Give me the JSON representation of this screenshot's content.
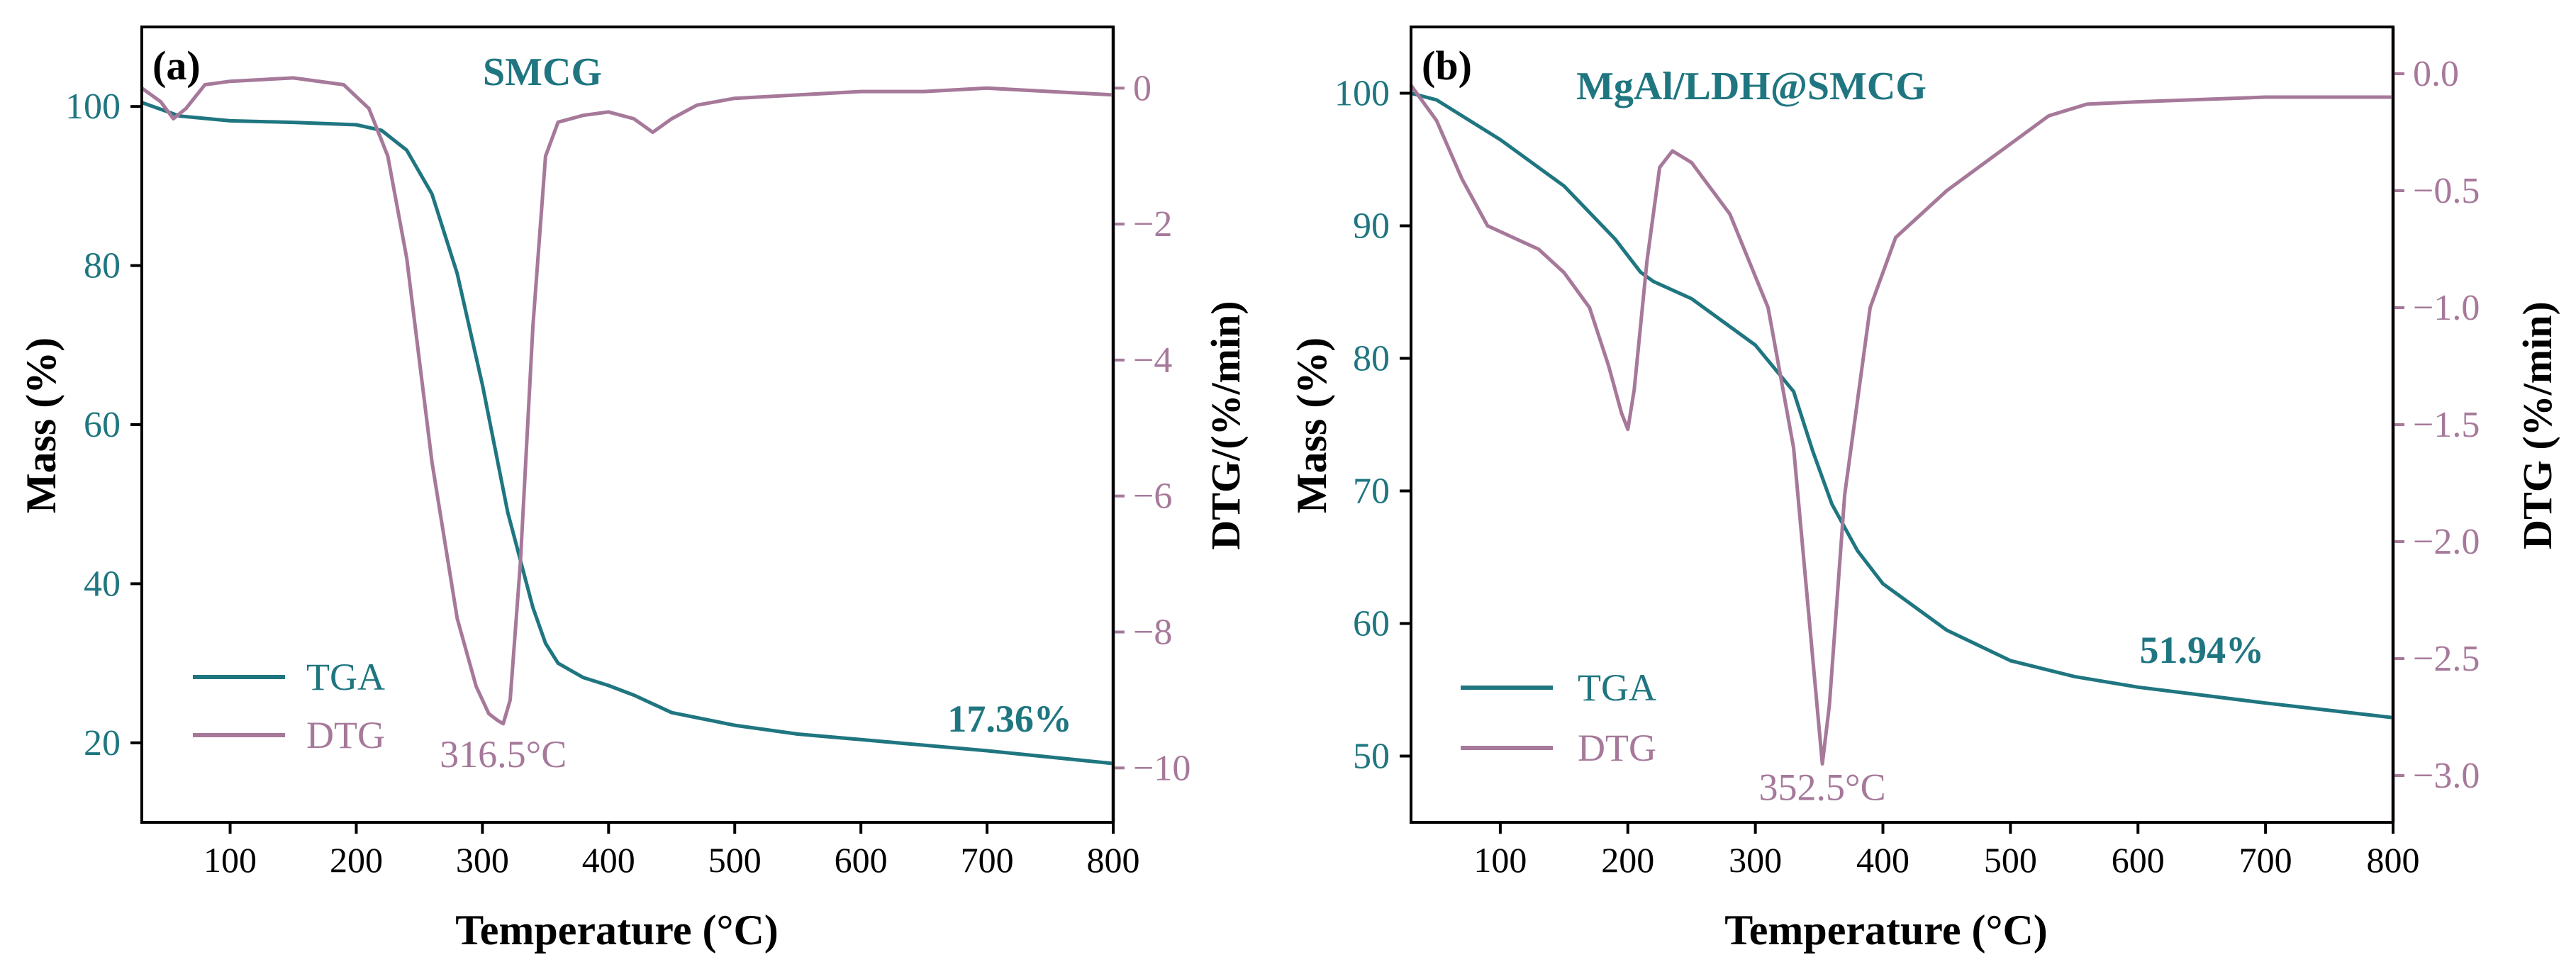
{
  "colors": {
    "tga": "#1f7680",
    "dtg": "#a6799a",
    "axis": "#000000",
    "background": "#ffffff"
  },
  "chart_data": [
    {
      "type": "line",
      "panel_label": "(a)",
      "title": "SMCG",
      "xlabel": "Temperature (°C)",
      "ylabel_left": "Mass (%)",
      "ylabel_right": "DTG/(%/min)",
      "xlim": [
        30,
        800
      ],
      "ylim_left": [
        10,
        110
      ],
      "ylim_right": [
        -10.8,
        0.9
      ],
      "x_ticks": [
        100,
        200,
        300,
        400,
        500,
        600,
        700,
        800
      ],
      "y_left_ticks": [
        20,
        40,
        60,
        80,
        100
      ],
      "y_right_ticks": [
        0,
        -2,
        -4,
        -6,
        -8,
        -10
      ],
      "y_right_tick_labels": [
        "0",
        "−2",
        "−4",
        "−6",
        "−8",
        "−10"
      ],
      "legend": {
        "position": "bottom-left",
        "entries": [
          "TGA",
          "DTG"
        ]
      },
      "annotations": [
        {
          "text": "316.5°C",
          "x": 316.5,
          "axis": "right",
          "y": -9.8
        },
        {
          "text": "17.36%",
          "x": 718,
          "axis": "left",
          "y": 23
        }
      ],
      "series": [
        {
          "name": "TGA",
          "axis": "left",
          "x": [
            30,
            60,
            100,
            150,
            200,
            220,
            240,
            260,
            280,
            300,
            320,
            340,
            350,
            360,
            380,
            400,
            420,
            450,
            500,
            550,
            600,
            700,
            800
          ],
          "y": [
            100.5,
            98.8,
            98.2,
            98.0,
            97.7,
            97.0,
            94.5,
            89.0,
            79.0,
            65.0,
            49.0,
            37.0,
            32.5,
            30.0,
            28.2,
            27.2,
            26.0,
            23.8,
            22.2,
            21.1,
            20.4,
            19.0,
            17.4
          ]
        },
        {
          "name": "DTG",
          "axis": "right",
          "x": [
            30,
            45,
            55,
            65,
            80,
            100,
            150,
            190,
            210,
            225,
            240,
            260,
            280,
            295,
            305,
            312,
            316.5,
            322,
            330,
            340,
            350,
            360,
            380,
            400,
            420,
            435,
            450,
            470,
            500,
            550,
            600,
            650,
            700,
            750,
            800
          ],
          "y": [
            0.0,
            -0.2,
            -0.45,
            -0.3,
            0.05,
            0.1,
            0.15,
            0.05,
            -0.3,
            -1.0,
            -2.5,
            -5.5,
            -7.8,
            -8.8,
            -9.2,
            -9.3,
            -9.35,
            -9.0,
            -7.0,
            -3.5,
            -1.0,
            -0.5,
            -0.4,
            -0.35,
            -0.45,
            -0.65,
            -0.45,
            -0.25,
            -0.15,
            -0.1,
            -0.05,
            -0.05,
            0.0,
            -0.05,
            -0.1
          ]
        }
      ]
    },
    {
      "type": "line",
      "panel_label": "(b)",
      "title": "MgAl/LDH@SMCG",
      "xlabel": "Temperature (°C)",
      "ylabel_left": "Mass (%)",
      "ylabel_right": "DTG (%/min)",
      "xlim": [
        30,
        800
      ],
      "ylim_left": [
        45,
        105
      ],
      "ylim_right": [
        -3.2,
        0.2
      ],
      "x_ticks": [
        100,
        200,
        300,
        400,
        500,
        600,
        700,
        800
      ],
      "y_left_ticks": [
        50,
        60,
        70,
        80,
        90,
        100
      ],
      "y_right_ticks": [
        0.0,
        -0.5,
        -1.0,
        -1.5,
        -2.0,
        -2.5,
        -3.0
      ],
      "y_right_tick_labels": [
        "0.0",
        "−0.5",
        "−1.0",
        "−1.5",
        "−2.0",
        "−2.5",
        "−3.0"
      ],
      "legend": {
        "position": "bottom-left",
        "entries": [
          "TGA",
          "DTG"
        ]
      },
      "annotations": [
        {
          "text": "352.5°C",
          "x": 352.5,
          "axis": "right",
          "y": -3.05
        },
        {
          "text": "51.94%",
          "x": 650,
          "axis": "left",
          "y": 58
        }
      ],
      "series": [
        {
          "name": "TGA",
          "axis": "left",
          "x": [
            30,
            50,
            100,
            150,
            190,
            210,
            220,
            250,
            300,
            330,
            345,
            360,
            380,
            400,
            450,
            500,
            550,
            600,
            700,
            800
          ],
          "y": [
            100.0,
            99.5,
            96.5,
            93.0,
            89.0,
            86.5,
            85.8,
            84.5,
            81.0,
            77.5,
            73.0,
            69.0,
            65.5,
            63.0,
            59.5,
            57.2,
            56.0,
            55.2,
            54.0,
            52.9
          ]
        },
        {
          "name": "DTG",
          "axis": "right",
          "x": [
            30,
            50,
            70,
            90,
            110,
            130,
            150,
            170,
            185,
            195,
            200,
            205,
            215,
            225,
            235,
            250,
            280,
            310,
            330,
            340,
            350,
            352.5,
            358,
            370,
            390,
            410,
            450,
            500,
            530,
            560,
            600,
            700,
            800
          ],
          "y": [
            -0.05,
            -0.2,
            -0.45,
            -0.65,
            -0.7,
            -0.75,
            -0.85,
            -1.0,
            -1.25,
            -1.45,
            -1.52,
            -1.35,
            -0.8,
            -0.4,
            -0.33,
            -0.38,
            -0.6,
            -1.0,
            -1.6,
            -2.2,
            -2.8,
            -2.95,
            -2.7,
            -1.8,
            -1.0,
            -0.7,
            -0.5,
            -0.3,
            -0.18,
            -0.13,
            -0.12,
            -0.1,
            -0.1
          ]
        }
      ]
    }
  ]
}
